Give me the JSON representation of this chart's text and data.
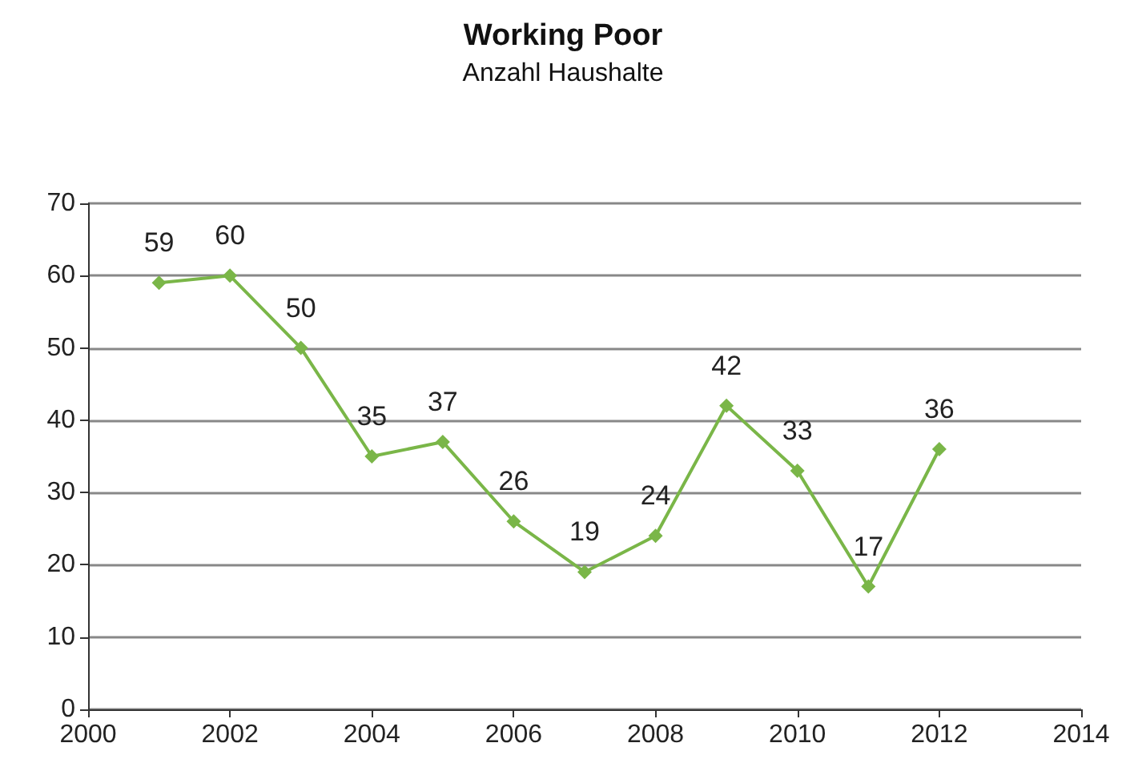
{
  "chart_data": {
    "type": "line",
    "title": "Working Poor",
    "subtitle": "Anzahl Haushalte",
    "x": [
      2001,
      2002,
      2003,
      2004,
      2005,
      2006,
      2007,
      2008,
      2009,
      2010,
      2011,
      2012
    ],
    "values": [
      59,
      60,
      50,
      35,
      37,
      26,
      19,
      24,
      42,
      33,
      17,
      36
    ],
    "color": "#7ab648",
    "marker": "diamond",
    "data_labels": true,
    "grid": "y",
    "xlim": [
      2000,
      2014
    ],
    "xticks": [
      2000,
      2002,
      2004,
      2006,
      2008,
      2010,
      2012,
      2014
    ],
    "ylim": [
      0,
      70
    ],
    "yticks": [
      0,
      10,
      20,
      30,
      40,
      50,
      60,
      70
    ]
  }
}
